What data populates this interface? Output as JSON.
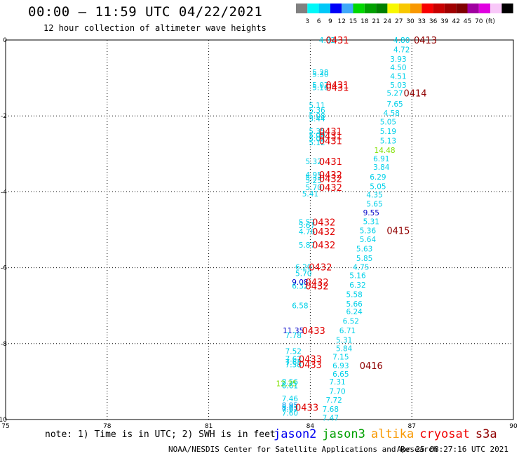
{
  "header": {
    "title": "00:00 — 11:59 UTC 04/22/2021",
    "subtitle": "12 hour collection of altimeter wave heights"
  },
  "colorbar": {
    "colors": [
      "#808080",
      "#00f8f8",
      "#00c8f8",
      "#0000f8",
      "#40a8f8",
      "#00d800",
      "#00a000",
      "#008000",
      "#f8f800",
      "#f8c800",
      "#f89800",
      "#f80000",
      "#c80000",
      "#a00000",
      "#800000",
      "#a000a0",
      "#e000e0",
      "#f8c8f8",
      "#000000"
    ],
    "labels": [
      "3",
      "6",
      "9",
      "12",
      "15",
      "18",
      "21",
      "24",
      "27",
      "30",
      "33",
      "36",
      "39",
      "42",
      "45",
      "70",
      "(ft)"
    ]
  },
  "note": "note: 1) Time is in UTC; 2) SWH is in feet",
  "satellites": [
    {
      "name": "jason2",
      "color": "#0000f0"
    },
    {
      "name": "jason3",
      "color": "#00a000"
    },
    {
      "name": "altika",
      "color": "#f89800"
    },
    {
      "name": "cryosat",
      "color": "#f00000"
    },
    {
      "name": "s3a",
      "color": "#900000"
    }
  ],
  "footer": {
    "credit": "NOAA/NESDIS Center for Satellite Applications and Research",
    "timestamp": "Apr 25 08:27:16 UTC 2021"
  },
  "chart_data": {
    "type": "scatter",
    "xlim": [
      75,
      90
    ],
    "ylim": [
      -10,
      0
    ],
    "xticks": [
      "75",
      "78",
      "81",
      "84",
      "87",
      "90"
    ],
    "yticks": [
      "0",
      "-2",
      "-4",
      "-6",
      "-8",
      "-10"
    ],
    "grid": true,
    "points": [
      {
        "x": 84.5,
        "y": 0.0,
        "label": "4.82",
        "color": "#00d0e8"
      },
      {
        "x": 86.7,
        "y": 0.0,
        "label": "4.80",
        "color": "#00d0e8"
      },
      {
        "x": 86.7,
        "y": -0.25,
        "label": "4.72",
        "color": "#00d0e8"
      },
      {
        "x": 86.6,
        "y": -0.5,
        "label": "3.93",
        "color": "#00d0e8"
      },
      {
        "x": 86.6,
        "y": -0.72,
        "label": "4.50",
        "color": "#00d0e8"
      },
      {
        "x": 86.6,
        "y": -0.95,
        "label": "4.51",
        "color": "#00d0e8"
      },
      {
        "x": 84.3,
        "y": -0.85,
        "label": "5.28",
        "color": "#00d0e8"
      },
      {
        "x": 84.3,
        "y": -0.9,
        "label": "5.30",
        "color": "#00d0e8"
      },
      {
        "x": 84.3,
        "y": -1.18,
        "label": "5.07",
        "color": "#00d0e8"
      },
      {
        "x": 84.3,
        "y": -1.25,
        "label": "5.16",
        "color": "#00d0e8"
      },
      {
        "x": 86.6,
        "y": -1.18,
        "label": "5.03",
        "color": "#00d0e8"
      },
      {
        "x": 86.5,
        "y": -1.4,
        "label": "5.27",
        "color": "#00d0e8"
      },
      {
        "x": 86.5,
        "y": -1.68,
        "label": "7.65",
        "color": "#00d0e8"
      },
      {
        "x": 84.2,
        "y": -1.72,
        "label": "5.11",
        "color": "#00d0e8"
      },
      {
        "x": 84.2,
        "y": -1.85,
        "label": "5.36",
        "color": "#00d0e8"
      },
      {
        "x": 84.2,
        "y": -2.0,
        "label": "5.08",
        "color": "#00d0e8"
      },
      {
        "x": 84.2,
        "y": -2.07,
        "label": "5.44",
        "color": "#00d0e8"
      },
      {
        "x": 86.4,
        "y": -1.92,
        "label": "4.58",
        "color": "#00d0e8"
      },
      {
        "x": 86.3,
        "y": -2.15,
        "label": "5.05",
        "color": "#00d0e8"
      },
      {
        "x": 86.3,
        "y": -2.4,
        "label": "5.19",
        "color": "#00d0e8"
      },
      {
        "x": 84.2,
        "y": -2.4,
        "label": "5.35",
        "color": "#00d0e8"
      },
      {
        "x": 84.2,
        "y": -2.5,
        "label": "5.09",
        "color": "#00d0e8"
      },
      {
        "x": 84.2,
        "y": -2.6,
        "label": "5.02",
        "color": "#00d0e8"
      },
      {
        "x": 84.2,
        "y": -2.7,
        "label": "5.12",
        "color": "#00d0e8"
      },
      {
        "x": 86.3,
        "y": -2.65,
        "label": "5.13",
        "color": "#00d0e8"
      },
      {
        "x": 86.2,
        "y": -2.9,
        "label": "14.48",
        "color": "#80e000"
      },
      {
        "x": 86.1,
        "y": -3.12,
        "label": "6.91",
        "color": "#00d0e8"
      },
      {
        "x": 84.1,
        "y": -3.2,
        "label": "5.32",
        "color": "#00d0e8"
      },
      {
        "x": 86.1,
        "y": -3.35,
        "label": "3.84",
        "color": "#00d0e8"
      },
      {
        "x": 84.1,
        "y": -3.55,
        "label": "4.95",
        "color": "#00d0e8"
      },
      {
        "x": 84.1,
        "y": -3.62,
        "label": "5.33",
        "color": "#00d0e8"
      },
      {
        "x": 84.1,
        "y": -3.7,
        "label": "5.25",
        "color": "#00d0e8"
      },
      {
        "x": 86.0,
        "y": -3.6,
        "label": "6.29",
        "color": "#00d0e8"
      },
      {
        "x": 84.1,
        "y": -3.88,
        "label": "5.70",
        "color": "#00d0e8"
      },
      {
        "x": 86.0,
        "y": -3.85,
        "label": "5.05",
        "color": "#00d0e8"
      },
      {
        "x": 84.0,
        "y": -4.05,
        "label": "5.41",
        "color": "#00d0e8"
      },
      {
        "x": 85.9,
        "y": -4.08,
        "label": "4.35",
        "color": "#00d0e8"
      },
      {
        "x": 85.9,
        "y": -4.32,
        "label": "5.65",
        "color": "#00d0e8"
      },
      {
        "x": 85.8,
        "y": -4.55,
        "label": "9.55",
        "color": "#0000c8"
      },
      {
        "x": 85.8,
        "y": -4.78,
        "label": "5.31",
        "color": "#00d0e8"
      },
      {
        "x": 83.9,
        "y": -4.8,
        "label": "5.57",
        "color": "#00d0e8"
      },
      {
        "x": 83.9,
        "y": -4.88,
        "label": "5.67",
        "color": "#00d0e8"
      },
      {
        "x": 85.7,
        "y": -5.02,
        "label": "5.36",
        "color": "#00d0e8"
      },
      {
        "x": 83.9,
        "y": -5.05,
        "label": "4.76",
        "color": "#00d0e8"
      },
      {
        "x": 85.7,
        "y": -5.25,
        "label": "5.64",
        "color": "#00d0e8"
      },
      {
        "x": 83.9,
        "y": -5.4,
        "label": "5.87",
        "color": "#00d0e8"
      },
      {
        "x": 85.6,
        "y": -5.5,
        "label": "5.63",
        "color": "#00d0e8"
      },
      {
        "x": 85.6,
        "y": -5.75,
        "label": "5.85",
        "color": "#00d0e8"
      },
      {
        "x": 83.8,
        "y": -5.98,
        "label": "6.20",
        "color": "#00d0e8"
      },
      {
        "x": 85.5,
        "y": -5.98,
        "label": "4.75",
        "color": "#00d0e8"
      },
      {
        "x": 83.8,
        "y": -6.15,
        "label": "5.70",
        "color": "#00d0e8"
      },
      {
        "x": 85.4,
        "y": -6.2,
        "label": "5.16",
        "color": "#00d0e8"
      },
      {
        "x": 83.7,
        "y": -6.38,
        "label": "9.08",
        "color": "#0000c8"
      },
      {
        "x": 83.7,
        "y": -6.48,
        "label": "6.32",
        "color": "#00d0e8"
      },
      {
        "x": 85.4,
        "y": -6.45,
        "label": "6.32",
        "color": "#00d0e8"
      },
      {
        "x": 85.3,
        "y": -6.7,
        "label": "5.58",
        "color": "#00d0e8"
      },
      {
        "x": 85.3,
        "y": -6.95,
        "label": "5.66",
        "color": "#00d0e8"
      },
      {
        "x": 83.7,
        "y": -7.0,
        "label": "6.58",
        "color": "#00d0e8"
      },
      {
        "x": 85.3,
        "y": -7.15,
        "label": "6.24",
        "color": "#00d0e8"
      },
      {
        "x": 85.2,
        "y": -7.4,
        "label": "6.52",
        "color": "#00d0e8"
      },
      {
        "x": 83.5,
        "y": -7.65,
        "label": "11.35",
        "color": "#0000c8"
      },
      {
        "x": 85.1,
        "y": -7.65,
        "label": "6.71",
        "color": "#00d0e8"
      },
      {
        "x": 83.5,
        "y": -7.78,
        "label": "7.78",
        "color": "#00d0e8"
      },
      {
        "x": 85.0,
        "y": -7.9,
        "label": "5.31",
        "color": "#00d0e8"
      },
      {
        "x": 85.0,
        "y": -8.12,
        "label": "5.84",
        "color": "#00d0e8"
      },
      {
        "x": 83.5,
        "y": -8.2,
        "label": "7.52",
        "color": "#00d0e8"
      },
      {
        "x": 84.9,
        "y": -8.35,
        "label": "7.15",
        "color": "#00d0e8"
      },
      {
        "x": 83.5,
        "y": -8.4,
        "label": "7.62",
        "color": "#00d0e8"
      },
      {
        "x": 83.5,
        "y": -8.48,
        "label": "7.63",
        "color": "#00d0e8"
      },
      {
        "x": 83.5,
        "y": -8.55,
        "label": "7.58",
        "color": "#00d0e8"
      },
      {
        "x": 84.9,
        "y": -8.58,
        "label": "6.93",
        "color": "#00d0e8"
      },
      {
        "x": 84.9,
        "y": -8.8,
        "label": "6.65",
        "color": "#00d0e8"
      },
      {
        "x": 83.4,
        "y": -9.0,
        "label": "8.56",
        "color": "#00d0e8"
      },
      {
        "x": 83.3,
        "y": -9.05,
        "label": "12.35",
        "color": "#80e000"
      },
      {
        "x": 83.4,
        "y": -9.1,
        "label": "6.61",
        "color": "#00d0e8"
      },
      {
        "x": 84.8,
        "y": -9.0,
        "label": "7.31",
        "color": "#00d0e8"
      },
      {
        "x": 84.8,
        "y": -9.25,
        "label": "7.70",
        "color": "#00d0e8"
      },
      {
        "x": 83.4,
        "y": -9.45,
        "label": "7.46",
        "color": "#00d0e8"
      },
      {
        "x": 84.7,
        "y": -9.48,
        "label": "7.72",
        "color": "#00d0e8"
      },
      {
        "x": 83.4,
        "y": -9.62,
        "label": "8.95",
        "color": "#00a0f0"
      },
      {
        "x": 83.4,
        "y": -9.68,
        "label": "8.03",
        "color": "#00a0f0"
      },
      {
        "x": 83.4,
        "y": -9.72,
        "label": "7.67",
        "color": "#00d0e8"
      },
      {
        "x": 84.6,
        "y": -9.72,
        "label": "7.68",
        "color": "#00d0e8"
      },
      {
        "x": 83.4,
        "y": -9.82,
        "label": "7.60",
        "color": "#00d0e8"
      },
      {
        "x": 84.6,
        "y": -9.95,
        "label": "7.47",
        "color": "#00d0e8"
      }
    ],
    "markers": [
      {
        "x": 84.8,
        "y": 0.0,
        "label": "0431",
        "color": "#e00000"
      },
      {
        "x": 87.4,
        "y": 0.0,
        "label": "0413",
        "color": "#900000"
      },
      {
        "x": 84.8,
        "y": -1.18,
        "label": "0431",
        "color": "#e00000"
      },
      {
        "x": 84.8,
        "y": -1.25,
        "label": "0431",
        "color": "#e00000"
      },
      {
        "x": 87.1,
        "y": -1.4,
        "label": "0414",
        "color": "#900000"
      },
      {
        "x": 84.6,
        "y": -2.4,
        "label": "0431",
        "color": "#e00000"
      },
      {
        "x": 84.6,
        "y": -2.52,
        "label": "0431",
        "color": "#e00000"
      },
      {
        "x": 84.6,
        "y": -2.65,
        "label": "0431",
        "color": "#e00000"
      },
      {
        "x": 84.6,
        "y": -3.2,
        "label": "0431",
        "color": "#e00000"
      },
      {
        "x": 84.6,
        "y": -3.55,
        "label": "0432",
        "color": "#e00000"
      },
      {
        "x": 84.6,
        "y": -3.65,
        "label": "0432",
        "color": "#e00000"
      },
      {
        "x": 84.6,
        "y": -3.88,
        "label": "0432",
        "color": "#e00000"
      },
      {
        "x": 84.4,
        "y": -4.8,
        "label": "0432",
        "color": "#e00000"
      },
      {
        "x": 84.4,
        "y": -5.05,
        "label": "0432",
        "color": "#e00000"
      },
      {
        "x": 86.6,
        "y": -5.02,
        "label": "0415",
        "color": "#900000"
      },
      {
        "x": 84.4,
        "y": -5.4,
        "label": "0432",
        "color": "#e00000"
      },
      {
        "x": 84.3,
        "y": -5.98,
        "label": "0432",
        "color": "#e00000"
      },
      {
        "x": 84.2,
        "y": -6.38,
        "label": "0432",
        "color": "#e00000"
      },
      {
        "x": 84.2,
        "y": -6.48,
        "label": "0432",
        "color": "#e00000"
      },
      {
        "x": 84.1,
        "y": -7.65,
        "label": "0433",
        "color": "#e00000"
      },
      {
        "x": 84.0,
        "y": -8.4,
        "label": "0433",
        "color": "#e00000"
      },
      {
        "x": 84.0,
        "y": -8.55,
        "label": "0433",
        "color": "#e00000"
      },
      {
        "x": 85.8,
        "y": -8.58,
        "label": "0416",
        "color": "#900000"
      },
      {
        "x": 83.9,
        "y": -9.68,
        "label": "0433",
        "color": "#e00000"
      }
    ]
  }
}
